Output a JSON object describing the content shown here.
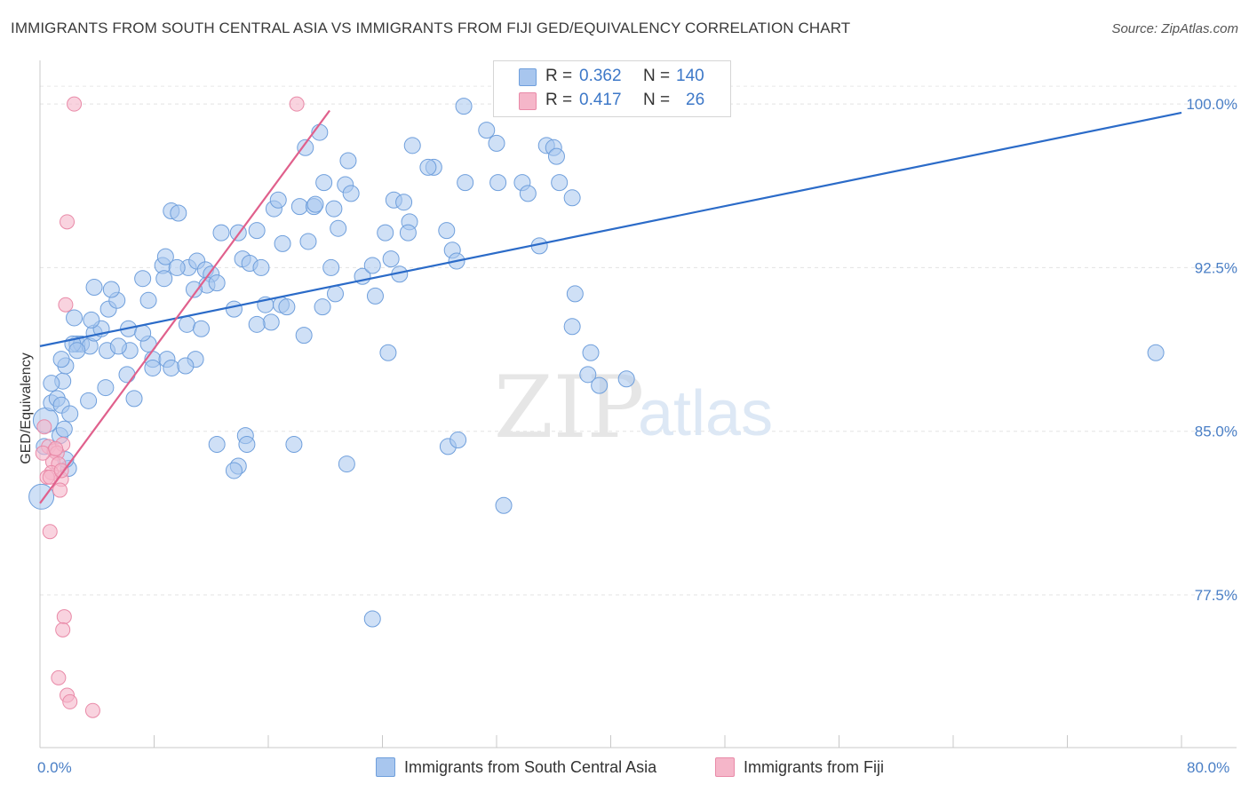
{
  "title": "IMMIGRANTS FROM SOUTH CENTRAL ASIA VS IMMIGRANTS FROM FIJI GED/EQUIVALENCY CORRELATION CHART",
  "source": "Source: ZipAtlas.com",
  "watermark": {
    "zip": "ZIP",
    "atlas": "atlas"
  },
  "legend": {
    "r_label": "R =",
    "n_label": "N =",
    "rows": [
      {
        "r": "0.362",
        "n": "140",
        "color": "#a8c6ee"
      },
      {
        "r": "0.417",
        "n": "26",
        "color": "#f5b6c9"
      }
    ]
  },
  "bottom_legend": [
    {
      "label": "Immigrants from South Central Asia",
      "color": "#a8c6ee"
    },
    {
      "label": "Immigrants from Fiji",
      "color": "#f5b6c9"
    }
  ],
  "chart_data": {
    "type": "scatter",
    "title": "IMMIGRANTS FROM SOUTH CENTRAL ASIA VS IMMIGRANTS FROM FIJI GED/EQUIVALENCY CORRELATION CHART",
    "xlabel": "",
    "ylabel": "GED/Equivalency",
    "xlim": [
      0,
      80
    ],
    "ylim": [
      70.5,
      102
    ],
    "x_tick_labels": [
      "0.0%",
      "80.0%"
    ],
    "y_ticks": [
      {
        "value": 77.5,
        "label": "77.5%"
      },
      {
        "value": 85.0,
        "label": "85.0%"
      },
      {
        "value": 92.5,
        "label": "92.5%"
      },
      {
        "value": 100.0,
        "label": "100.0%"
      }
    ],
    "grid": true,
    "series": [
      {
        "name": "Immigrants from South Central Asia",
        "color": "#a8c6ee",
        "stroke": "#6f9fdc",
        "trend": {
          "x": [
            0,
            80
          ],
          "y": [
            88.9,
            99.6
          ],
          "color": "#2b6bc8"
        },
        "points": [
          [
            0.1,
            82.0,
            2
          ],
          [
            0.4,
            85.5,
            2
          ],
          [
            0.8,
            86.3,
            1
          ],
          [
            1.2,
            86.5,
            1
          ],
          [
            1.5,
            86.2,
            1
          ],
          [
            1.4,
            84.8,
            1
          ],
          [
            1.7,
            85.1,
            1
          ],
          [
            2.0,
            83.3,
            1
          ],
          [
            1.6,
            87.3,
            1
          ],
          [
            1.8,
            88.0,
            1
          ],
          [
            1.5,
            88.3,
            1
          ],
          [
            2.6,
            89.0,
            1
          ],
          [
            2.9,
            89.0,
            1
          ],
          [
            3.5,
            88.9,
            1
          ],
          [
            3.8,
            89.5,
            1
          ],
          [
            4.3,
            89.7,
            1
          ],
          [
            3.6,
            90.1,
            1
          ],
          [
            4.8,
            90.6,
            1
          ],
          [
            5.4,
            91.0,
            1
          ],
          [
            5.0,
            91.5,
            1
          ],
          [
            3.8,
            91.6,
            1
          ],
          [
            2.4,
            90.2,
            1
          ],
          [
            6.2,
            89.7,
            1
          ],
          [
            7.6,
            89.0,
            1
          ],
          [
            7.2,
            89.5,
            1
          ],
          [
            7.9,
            88.3,
            1
          ],
          [
            8.9,
            88.3,
            1
          ],
          [
            9.2,
            87.9,
            1
          ],
          [
            6.3,
            88.7,
            1
          ],
          [
            4.6,
            87.0,
            1
          ],
          [
            6.1,
            87.6,
            1
          ],
          [
            6.6,
            86.5,
            1
          ],
          [
            8.6,
            92.6,
            1
          ],
          [
            7.2,
            92.0,
            1
          ],
          [
            8.7,
            92.0,
            1
          ],
          [
            7.6,
            91.0,
            1
          ],
          [
            8.8,
            93.0,
            1
          ],
          [
            9.2,
            95.1,
            1
          ],
          [
            9.7,
            95.0,
            1
          ],
          [
            10.4,
            92.5,
            1
          ],
          [
            11.0,
            92.8,
            1
          ],
          [
            11.6,
            92.4,
            1
          ],
          [
            12.0,
            92.2,
            1
          ],
          [
            11.7,
            91.7,
            1
          ],
          [
            10.8,
            91.5,
            1
          ],
          [
            9.6,
            92.5,
            1
          ],
          [
            10.3,
            89.9,
            1
          ],
          [
            11.3,
            89.7,
            1
          ],
          [
            10.9,
            88.3,
            1
          ],
          [
            10.2,
            88.0,
            1
          ],
          [
            12.4,
            91.8,
            1
          ],
          [
            13.6,
            90.6,
            1
          ],
          [
            14.2,
            92.9,
            1
          ],
          [
            14.7,
            92.7,
            1
          ],
          [
            15.5,
            92.5,
            1
          ],
          [
            15.8,
            90.8,
            1
          ],
          [
            16.9,
            90.8,
            1
          ],
          [
            17.3,
            90.7,
            1
          ],
          [
            16.2,
            90.0,
            1
          ],
          [
            12.7,
            94.1,
            1
          ],
          [
            13.9,
            94.1,
            1
          ],
          [
            15.2,
            94.2,
            1
          ],
          [
            17.0,
            93.6,
            1
          ],
          [
            16.4,
            95.2,
            1
          ],
          [
            16.7,
            95.6,
            1
          ],
          [
            18.2,
            95.3,
            1
          ],
          [
            19.2,
            95.3,
            1
          ],
          [
            19.3,
            95.4,
            1
          ],
          [
            18.8,
            93.7,
            1
          ],
          [
            19.9,
            96.4,
            1
          ],
          [
            18.6,
            98.0,
            1
          ],
          [
            19.6,
            98.7,
            1
          ],
          [
            20.6,
            95.2,
            1
          ],
          [
            21.4,
            96.3,
            1
          ],
          [
            21.8,
            95.9,
            1
          ],
          [
            21.6,
            97.4,
            1
          ],
          [
            20.9,
            94.3,
            1
          ],
          [
            20.4,
            92.5,
            1
          ],
          [
            20.7,
            91.3,
            1
          ],
          [
            19.8,
            90.7,
            1
          ],
          [
            22.6,
            92.1,
            1
          ],
          [
            23.3,
            92.6,
            1
          ],
          [
            23.5,
            91.2,
            1
          ],
          [
            24.2,
            94.1,
            1
          ],
          [
            24.8,
            95.6,
            1
          ],
          [
            25.5,
            95.5,
            1
          ],
          [
            25.9,
            94.6,
            1
          ],
          [
            25.8,
            94.1,
            1
          ],
          [
            24.6,
            92.9,
            1
          ],
          [
            25.2,
            92.2,
            1
          ],
          [
            26.1,
            98.1,
            1
          ],
          [
            27.6,
            97.1,
            1
          ],
          [
            28.5,
            94.2,
            1
          ],
          [
            28.9,
            93.3,
            1
          ],
          [
            29.2,
            92.8,
            1
          ],
          [
            27.2,
            97.1,
            1
          ],
          [
            29.8,
            96.4,
            1
          ],
          [
            32.1,
            96.4,
            1
          ],
          [
            33.8,
            96.4,
            1
          ],
          [
            34.2,
            95.9,
            1
          ],
          [
            29.7,
            99.9,
            1
          ],
          [
            31.3,
            98.8,
            1
          ],
          [
            32.0,
            98.2,
            1
          ],
          [
            35.5,
            98.1,
            1
          ],
          [
            36.0,
            98.0,
            1
          ],
          [
            36.2,
            97.6,
            1
          ],
          [
            36.4,
            96.4,
            1
          ],
          [
            37.3,
            95.7,
            1
          ],
          [
            35.0,
            93.5,
            1
          ],
          [
            37.5,
            91.3,
            1
          ],
          [
            37.3,
            89.8,
            1
          ],
          [
            15.2,
            89.9,
            1
          ],
          [
            18.5,
            89.4,
            1
          ],
          [
            24.4,
            88.6,
            1
          ],
          [
            38.6,
            88.6,
            1
          ],
          [
            38.4,
            87.6,
            1
          ],
          [
            39.2,
            87.1,
            1
          ],
          [
            41.1,
            87.4,
            1
          ],
          [
            32.5,
            81.6,
            1
          ],
          [
            28.6,
            84.3,
            1
          ],
          [
            29.3,
            84.6,
            1
          ],
          [
            14.4,
            84.8,
            1
          ],
          [
            14.5,
            84.4,
            1
          ],
          [
            17.8,
            84.4,
            1
          ],
          [
            12.4,
            84.4,
            1
          ],
          [
            13.9,
            83.4,
            1
          ],
          [
            13.6,
            83.2,
            1
          ],
          [
            21.5,
            83.5,
            1
          ],
          [
            23.3,
            76.4,
            1
          ],
          [
            78.2,
            88.6,
            1
          ],
          [
            4.7,
            88.7,
            1
          ],
          [
            2.3,
            89.0,
            1
          ],
          [
            1.8,
            83.7,
            1
          ],
          [
            2.6,
            88.7,
            1
          ],
          [
            5.5,
            88.9,
            1
          ],
          [
            7.9,
            87.9,
            1
          ],
          [
            3.4,
            86.4,
            1
          ],
          [
            0.8,
            87.2,
            1
          ],
          [
            0.3,
            84.3,
            1
          ],
          [
            2.1,
            85.8,
            1
          ]
        ]
      },
      {
        "name": "Immigrants from Fiji",
        "color": "#f5b6c9",
        "stroke": "#e98aa8",
        "trend": {
          "x": [
            0,
            20.3
          ],
          "y": [
            81.7,
            99.7
          ],
          "color": "#e0608c"
        },
        "points": [
          [
            2.4,
            100.0
          ],
          [
            18.0,
            100.0
          ],
          [
            1.9,
            94.6
          ],
          [
            1.8,
            90.8
          ],
          [
            0.3,
            85.2
          ],
          [
            0.6,
            84.3
          ],
          [
            1.0,
            84.1
          ],
          [
            1.6,
            84.4
          ],
          [
            1.2,
            84.0
          ],
          [
            0.9,
            83.6
          ],
          [
            1.3,
            83.5
          ],
          [
            0.8,
            83.1
          ],
          [
            0.5,
            82.9
          ],
          [
            1.5,
            82.8
          ],
          [
            0.7,
            82.9
          ],
          [
            1.4,
            82.3
          ],
          [
            0.7,
            80.4
          ],
          [
            1.7,
            76.5
          ],
          [
            1.6,
            75.9
          ],
          [
            1.3,
            73.7
          ],
          [
            1.9,
            72.9
          ],
          [
            2.1,
            72.6
          ],
          [
            3.7,
            72.2
          ],
          [
            0.2,
            84.0
          ],
          [
            1.1,
            84.2
          ],
          [
            1.5,
            83.2
          ]
        ]
      }
    ]
  }
}
